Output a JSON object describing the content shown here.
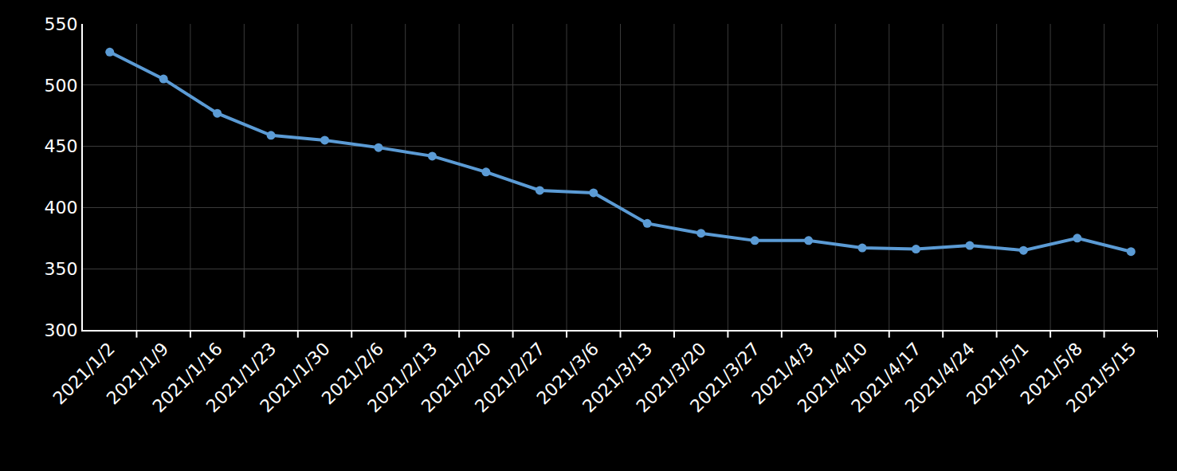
{
  "chart_data": {
    "type": "line",
    "categories": [
      "2021/1/2",
      "2021/1/9",
      "2021/1/16",
      "2021/1/23",
      "2021/1/30",
      "2021/2/6",
      "2021/2/13",
      "2021/2/20",
      "2021/2/27",
      "2021/3/6",
      "2021/3/13",
      "2021/3/20",
      "2021/3/27",
      "2021/4/3",
      "2021/4/10",
      "2021/4/17",
      "2021/4/24",
      "2021/5/1",
      "2021/5/8",
      "2021/5/15"
    ],
    "values": [
      527,
      505,
      477,
      459,
      455,
      449,
      442,
      429,
      414,
      412,
      387,
      379,
      373,
      373,
      367,
      366,
      369,
      365,
      375,
      364
    ],
    "color": "#5b9bd5",
    "marker": "circle",
    "ylim": [
      300,
      550
    ],
    "yticks": [
      300,
      350,
      400,
      450,
      500,
      550
    ],
    "grid": true
  }
}
